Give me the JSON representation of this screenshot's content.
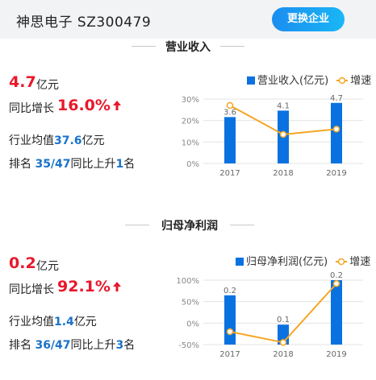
{
  "header": {
    "company": "神思电子 SZ300479",
    "switch_label": "更换企业"
  },
  "revenue": {
    "title": "营业收入",
    "value": "4.7",
    "unit": "亿元",
    "yoy_label": "同比增长",
    "yoy_value": "16.0%",
    "industry_avg_label": "行业均值",
    "industry_avg": "37.6",
    "industry_avg_unit": "亿元",
    "rank_label": "排名",
    "rank": "35/47",
    "rank_change_label": "同比上升",
    "rank_change": "1",
    "rank_change_unit": "名",
    "legend_bar": "营业收入(亿元)",
    "legend_line": "增速"
  },
  "profit": {
    "title": "归母净利润",
    "value": "0.2",
    "unit": "亿元",
    "yoy_label": "同比增长",
    "yoy_value": "92.1%",
    "industry_avg_label": "行业均值",
    "industry_avg": "1.4",
    "industry_avg_unit": "亿元",
    "rank_label": "排名",
    "rank": "36/47",
    "rank_change_label": "同比上升",
    "rank_change": "3",
    "rank_change_unit": "名",
    "legend_bar": "归母净利润(亿元)",
    "legend_line": "增速"
  },
  "colors": {
    "bar": "#0a72e0",
    "line": "#f5a623",
    "accent_red": "#e8182b",
    "highlight_blue": "#1a73c8"
  },
  "chart_data": [
    {
      "type": "bar",
      "categories": [
        "2017",
        "2018",
        "2019"
      ],
      "series": [
        {
          "name": "营业收入(亿元)",
          "values": [
            3.6,
            4.1,
            4.7
          ],
          "labels": [
            "3.6",
            "4.1",
            "4.7"
          ]
        },
        {
          "name": "增速",
          "type": "line",
          "values": [
            27,
            13.5,
            16
          ]
        }
      ],
      "y_ticks": [
        "30%",
        "20%",
        "10%",
        "0%"
      ],
      "ylim": [
        0,
        30
      ],
      "bar_ylim": [
        0,
        5
      ],
      "grid": true,
      "legend": "top-right"
    },
    {
      "type": "bar",
      "categories": [
        "2017",
        "2018",
        "2019"
      ],
      "series": [
        {
          "name": "归母净利润(亿元)",
          "values": [
            0.2,
            0.1,
            0.2
          ],
          "labels": [
            "0.2",
            "0.1",
            "0.2"
          ]
        },
        {
          "name": "增速",
          "type": "line",
          "values": [
            -20,
            -45,
            92
          ]
        }
      ],
      "y_ticks": [
        "100%",
        "50%",
        "0%",
        "-50%"
      ],
      "ylim": [
        -50,
        100
      ],
      "bar_heights": [
        0.765,
        0.31,
        1.0
      ],
      "grid": true,
      "legend": "top-right"
    }
  ]
}
